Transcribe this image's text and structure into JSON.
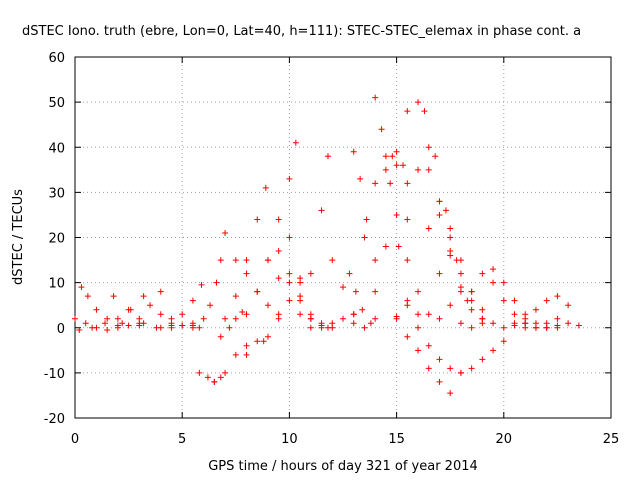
{
  "chart_data": {
    "type": "scatter",
    "title": "dSTEC Iono. truth (ebre, Lon=0, Lat=40, h=111): STEC-STEC_elemax in phase cont. a",
    "xlabel": "GPS time / hours of day 321 of year 2014",
    "ylabel": "dSTEC  / TECUs",
    "xlim": [
      0,
      25
    ],
    "ylim": [
      -20,
      60
    ],
    "xticks": [
      "0",
      "5",
      "10",
      "15",
      "20",
      "25"
    ],
    "yticks": [
      "-20",
      "-10",
      "0",
      "10",
      "20",
      "30",
      "40",
      "50",
      "60"
    ],
    "grid": true,
    "marker": "plus",
    "color": "#ff0000",
    "series": [
      {
        "x": [
          0.0,
          0.5,
          1.0,
          1.5,
          2.0,
          2.5,
          3.0
        ],
        "y": [
          2,
          1,
          0,
          -0.5,
          0,
          0.5,
          1
        ]
      },
      {
        "x": [
          0.2,
          0.8,
          1.4,
          2.0,
          2.6,
          3.2
        ],
        "y": [
          -0.5,
          0,
          1,
          2,
          4,
          7
        ]
      },
      {
        "x": [
          0.3,
          0.6,
          1.0,
          1.5,
          2.0
        ],
        "y": [
          9,
          7,
          4,
          2,
          0.5
        ]
      },
      {
        "x": [
          1.8,
          2.5,
          3.2,
          4.0,
          4.5
        ],
        "y": [
          7,
          4,
          1,
          0,
          0.5
        ]
      },
      {
        "x": [
          2.2,
          3.0,
          3.5,
          4.0
        ],
        "y": [
          1,
          2,
          5,
          8
        ]
      },
      {
        "x": [
          3.0,
          3.8,
          4.5,
          5.0,
          5.5
        ],
        "y": [
          0.5,
          0,
          0,
          0.5,
          1
        ]
      },
      {
        "x": [
          4.0,
          4.5,
          5.0,
          5.5,
          5.8
        ],
        "y": [
          3,
          1,
          0.5,
          0.5,
          0
        ]
      },
      {
        "x": [
          4.5,
          5.0,
          5.5,
          5.9
        ],
        "y": [
          2,
          3,
          6,
          9.5
        ]
      },
      {
        "x": [
          5.8,
          6.2,
          6.5,
          6.8,
          7.0
        ],
        "y": [
          -10,
          -11,
          -12,
          -11,
          -10
        ]
      },
      {
        "x": [
          5.5,
          6.0,
          6.3,
          6.6,
          6.8,
          7.0
        ],
        "y": [
          0,
          2,
          5,
          10,
          15,
          21
        ]
      },
      {
        "x": [
          6.5,
          7.5,
          8.0,
          8.5,
          9.0
        ],
        "y": [
          -12,
          -6,
          -4,
          -3,
          -2
        ]
      },
      {
        "x": [
          6.8,
          7.2,
          7.5,
          7.8
        ],
        "y": [
          -2,
          0,
          2,
          3.5
        ]
      },
      {
        "x": [
          7.0,
          7.5,
          8.0,
          8.5,
          8.9
        ],
        "y": [
          2,
          7,
          15,
          24,
          31
        ]
      },
      {
        "x": [
          7.5,
          8.0,
          8.5,
          9.0,
          9.5
        ],
        "y": [
          15,
          12,
          8,
          5,
          3
        ]
      },
      {
        "x": [
          8.0,
          8.5,
          9.0,
          9.5,
          10.0,
          10.3
        ],
        "y": [
          3,
          8,
          15,
          24,
          33,
          41
        ]
      },
      {
        "x": [
          8.0,
          8.8,
          9.5,
          10.0,
          10.5
        ],
        "y": [
          -6,
          -3,
          2,
          6,
          11
        ]
      },
      {
        "x": [
          9.0,
          9.5,
          10.0,
          10.5,
          11.0
        ],
        "y": [
          15,
          17,
          12,
          6,
          2
        ]
      },
      {
        "x": [
          9.5,
          10.0,
          10.5,
          11.0,
          11.5
        ],
        "y": [
          11,
          10,
          7,
          3,
          1
        ]
      },
      {
        "x": [
          10.0,
          10.5,
          11.0,
          11.5,
          11.8
        ],
        "y": [
          20,
          10,
          2,
          0,
          0
        ]
      },
      {
        "x": [
          10.5,
          11.0,
          11.5,
          11.8
        ],
        "y": [
          3,
          12,
          26,
          38
        ]
      },
      {
        "x": [
          11.0,
          11.5,
          12.0,
          12.5,
          13.0
        ],
        "y": [
          0,
          0.5,
          1,
          2,
          3
        ]
      },
      {
        "x": [
          12.0,
          12.5,
          13.0,
          13.5
        ],
        "y": [
          15,
          9,
          3,
          0
        ]
      },
      {
        "x": [
          12.8,
          13.1,
          13.4,
          13.8
        ],
        "y": [
          12,
          8,
          4,
          1
        ]
      },
      {
        "x": [
          13.0,
          13.3,
          13.6,
          14.0
        ],
        "y": [
          39,
          33,
          24,
          15
        ]
      },
      {
        "x": [
          13.5,
          14.0,
          14.5,
          15.0,
          15.5
        ],
        "y": [
          20,
          32,
          38,
          36,
          24
        ]
      },
      {
        "x": [
          14.0,
          14.3,
          14.7,
          15.1,
          15.5
        ],
        "y": [
          51,
          44,
          32,
          18,
          6
        ]
      },
      {
        "x": [
          14.5,
          14.8,
          15.0,
          15.3,
          15.5
        ],
        "y": [
          35,
          38,
          39,
          36,
          32
        ]
      },
      {
        "x": [
          14.0,
          14.5,
          15.0,
          15.5,
          16.0,
          16.5
        ],
        "y": [
          8,
          18,
          25,
          15,
          8,
          3
        ]
      },
      {
        "x": [
          12.0,
          13.0,
          14.0,
          15.0,
          16.0,
          17.0
        ],
        "y": [
          0,
          1,
          2,
          2.5,
          3,
          2
        ]
      },
      {
        "x": [
          15.0,
          15.5,
          16.0,
          16.5,
          17.0,
          17.5
        ],
        "y": [
          2,
          -2,
          -5,
          -9,
          -12,
          -14.5
        ]
      },
      {
        "x": [
          15.5,
          16.0,
          16.5,
          17.0,
          17.5,
          18.0
        ],
        "y": [
          5,
          0,
          -4,
          -7,
          -9,
          -10
        ]
      },
      {
        "x": [
          15.5,
          16.0,
          16.5,
          17.0,
          17.5,
          18.0,
          18.5
        ],
        "y": [
          48,
          35,
          22,
          12,
          5,
          1,
          0
        ]
      },
      {
        "x": [
          16.0,
          16.5,
          17.0,
          17.5,
          18.0
        ],
        "y": [
          50,
          40,
          28,
          17,
          8
        ]
      },
      {
        "x": [
          16.3,
          16.8,
          17.3,
          17.8,
          18.3
        ],
        "y": [
          48,
          38,
          26,
          15,
          6
        ]
      },
      {
        "x": [
          16.5,
          17.0,
          17.5,
          18.0,
          18.5,
          19.0
        ],
        "y": [
          35,
          25,
          16,
          9,
          4,
          1
        ]
      },
      {
        "x": [
          17.0,
          17.5,
          18.0,
          18.5,
          19.0
        ],
        "y": [
          28,
          20,
          12,
          6,
          2
        ]
      },
      {
        "x": [
          17.5,
          18.0,
          18.5,
          19.0
        ],
        "y": [
          22,
          15,
          8,
          2
        ]
      },
      {
        "x": [
          18.0,
          18.5,
          19.0,
          19.5,
          20.0
        ],
        "y": [
          -10,
          -9,
          -7,
          -5,
          -3
        ]
      },
      {
        "x": [
          18.5,
          19.0,
          19.5,
          20.0,
          20.5,
          21.0
        ],
        "y": [
          8,
          4,
          1,
          0,
          0.5,
          1
        ]
      },
      {
        "x": [
          19.0,
          19.5,
          20.0,
          20.5,
          21.0,
          21.5
        ],
        "y": [
          12,
          10,
          6,
          3,
          1,
          0
        ]
      },
      {
        "x": [
          19.5,
          20.0,
          20.5,
          21.0,
          21.5,
          22.0,
          22.5
        ],
        "y": [
          13,
          10,
          6,
          3,
          1,
          0,
          0
        ]
      },
      {
        "x": [
          20.5,
          21.0,
          21.5,
          22.0,
          22.5
        ],
        "y": [
          1,
          2,
          4,
          6,
          7
        ]
      },
      {
        "x": [
          21.0,
          21.5,
          22.0,
          22.5,
          23.0
        ],
        "y": [
          0,
          0,
          1,
          2,
          5
        ]
      },
      {
        "x": [
          22.0,
          22.5,
          23.0,
          23.5
        ],
        "y": [
          0,
          0.5,
          1,
          0.5
        ]
      }
    ]
  }
}
